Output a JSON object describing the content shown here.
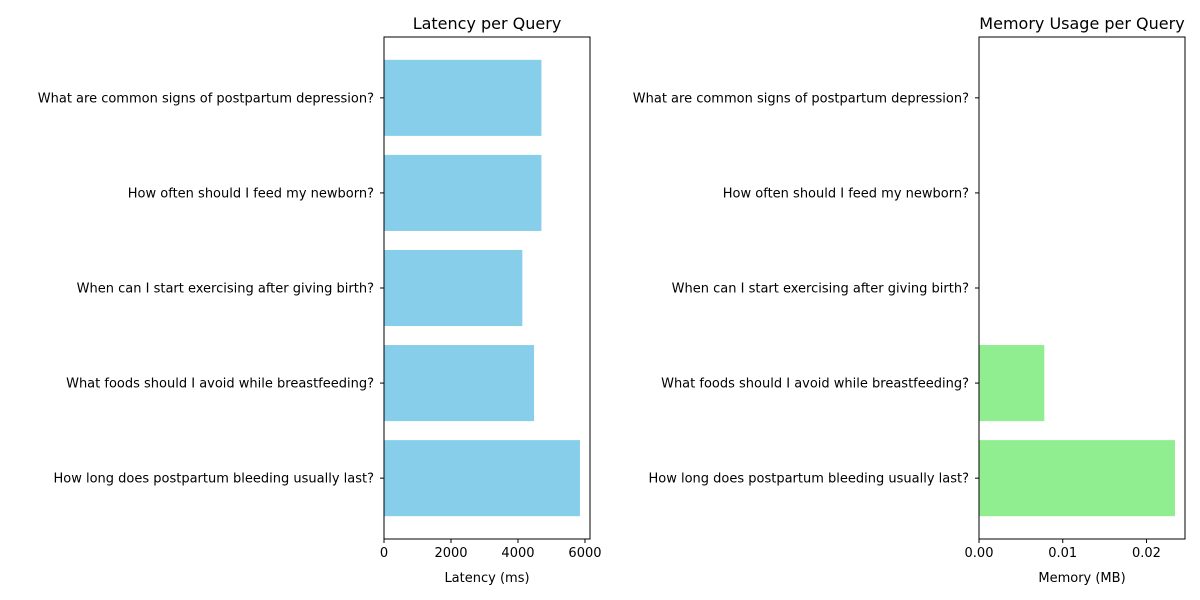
{
  "chart_data": [
    {
      "type": "bar",
      "orientation": "horizontal",
      "title": "Latency per Query",
      "xlabel": "Latency (ms)",
      "ylabel": "",
      "categories": [
        "How long does postpartum bleeding usually last?",
        "What foods should I avoid while breastfeeding?",
        "When can I start exercising after giving birth?",
        "How often should I feed my newborn?",
        "What are common signs of postpartum depression?"
      ],
      "values": [
        5850,
        4480,
        4130,
        4700,
        4700
      ],
      "xlim": [
        0,
        6150
      ],
      "xticks": [
        0,
        2000,
        4000,
        6000
      ],
      "xtick_labels": [
        "0",
        "2000",
        "4000",
        "6000"
      ],
      "grid": false,
      "color": "#87ceeb"
    },
    {
      "type": "bar",
      "orientation": "horizontal",
      "title": "Memory Usage per Query",
      "xlabel": "Memory (MB)",
      "ylabel": "",
      "categories": [
        "How long does postpartum bleeding usually last?",
        "What foods should I avoid while breastfeeding?",
        "When can I start exercising after giving birth?",
        "How often should I feed my newborn?",
        "What are common signs of postpartum depression?"
      ],
      "values": [
        0.0234,
        0.0078,
        0,
        0,
        0
      ],
      "xlim": [
        0,
        0.0246
      ],
      "xticks": [
        0,
        0.01,
        0.02
      ],
      "xtick_labels": [
        "0.00",
        "0.01",
        "0.02"
      ],
      "grid": false,
      "color": "#90ee90"
    }
  ]
}
